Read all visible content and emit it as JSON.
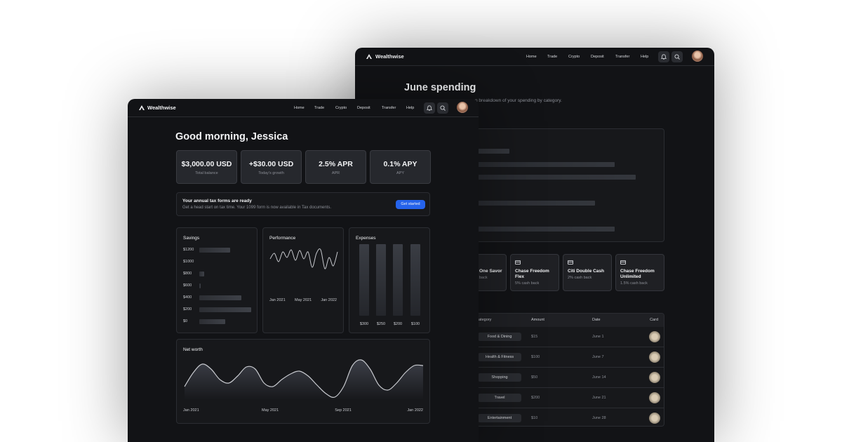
{
  "back_window": {
    "nav": {
      "logo": "Wealthwise",
      "links": [
        "Home",
        "Trade",
        "Crypto",
        "Deposit",
        "Transfer",
        "Help"
      ]
    },
    "title": "June spending",
    "subtitle": "n breakdown of your spending by category.",
    "spending_bars": [
      40,
      84,
      93,
      20,
      76,
      15,
      84
    ],
    "cards": [
      {
        "name": "One Savor",
        "detail": "back"
      },
      {
        "name": "Chase Freedom Flex",
        "detail": "5% cash back"
      },
      {
        "name": "Citi Double Cash",
        "detail": "2% cash back"
      },
      {
        "name": "Chase Freedom Unlimited",
        "detail": "1.5% cash back"
      }
    ],
    "table": {
      "headers": [
        "ategory",
        "Amount",
        "Date",
        "Card"
      ],
      "rows": [
        [
          "Food & Dining",
          "$15",
          "June 1"
        ],
        [
          "Health & Fitness",
          "$100",
          "June 7"
        ],
        [
          "Shopping",
          "$50",
          "June 14"
        ],
        [
          "Travel",
          "$200",
          "June 21"
        ],
        [
          "Entertainment",
          "$10",
          "June 28"
        ]
      ]
    }
  },
  "front_window": {
    "nav": {
      "logo": "Wealthwise",
      "links": [
        "Home",
        "Trade",
        "Crypto",
        "Deposit",
        "Transfer",
        "Help"
      ]
    },
    "greeting": "Good morning, Jessica",
    "stats": [
      {
        "value": "$3,000.00 USD",
        "label": "Total balance"
      },
      {
        "value": "+$30.00 USD",
        "label": "Today's growth"
      },
      {
        "value": "2.5% APR",
        "label": "APR"
      },
      {
        "value": "0.1% APY",
        "label": "APY"
      }
    ],
    "banner": {
      "title": "Your annual tax forms are ready",
      "text": "Get a head start on tax time. Your 1099 form is now available in Tax documents.",
      "button": "Get started"
    },
    "savings": {
      "title": "Savings",
      "categories": [
        "$1200",
        "$1000",
        "$800",
        "$600",
        "$400",
        "$200",
        "$0"
      ],
      "values": [
        59,
        0,
        9,
        3,
        80,
        99,
        49
      ]
    },
    "performance": {
      "title": "Performance",
      "x_labels": [
        "Jan 2021",
        "May 2021",
        "Jan 2022"
      ],
      "values": [
        17,
        25,
        13,
        27,
        19,
        30,
        15,
        29,
        17,
        27,
        5,
        25,
        30,
        3,
        19,
        7,
        27
      ]
    },
    "expenses": {
      "title": "Expenses",
      "categories": [
        "$300",
        "$250",
        "$200",
        "$100"
      ],
      "values": [
        100,
        100,
        100,
        100
      ]
    },
    "net_worth": {
      "title": "Net worth",
      "x_labels": [
        "Jan 2021",
        "May 2021",
        "Sep 2021",
        "Jan 2022"
      ],
      "values": [
        18,
        38,
        50,
        43,
        28,
        23,
        33,
        46,
        43,
        23,
        18,
        28,
        36,
        40,
        33,
        20,
        8,
        3,
        18,
        48,
        56,
        43,
        20,
        13,
        23,
        38,
        48,
        48
      ]
    }
  }
}
